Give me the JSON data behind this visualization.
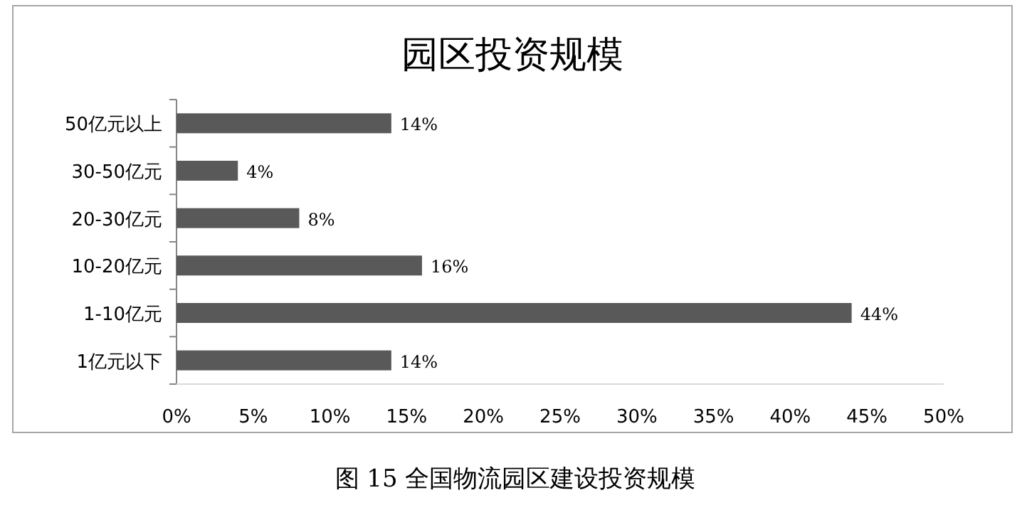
{
  "chart_data": {
    "type": "bar",
    "orientation": "horizontal",
    "title": "园区投资规模",
    "categories": [
      "50亿元以上",
      "30-50亿元",
      "20-30亿元",
      "10-20亿元",
      "1-10亿元",
      "1亿元以下"
    ],
    "series": [
      {
        "color": "#595959",
        "values": [
          14,
          4,
          8,
          16,
          44,
          14
        ]
      }
    ],
    "value_labels": [
      "14%",
      "4%",
      "8%",
      "16%",
      "44%",
      "14%"
    ],
    "xlim": [
      0,
      50
    ],
    "xticks": [
      {
        "value": 0,
        "label": "0%"
      },
      {
        "value": 5,
        "label": "5%"
      },
      {
        "value": 10,
        "label": "10%"
      },
      {
        "value": 15,
        "label": "15%"
      },
      {
        "value": 20,
        "label": "20%"
      },
      {
        "value": 25,
        "label": "25%"
      },
      {
        "value": 30,
        "label": "30%"
      },
      {
        "value": 35,
        "label": "35%"
      },
      {
        "value": 40,
        "label": "40%"
      },
      {
        "value": 45,
        "label": "45%"
      },
      {
        "value": 50,
        "label": "50%"
      }
    ],
    "grid": false,
    "annotations": [
      "图 15  全国物流园区建设投资规模"
    ]
  }
}
